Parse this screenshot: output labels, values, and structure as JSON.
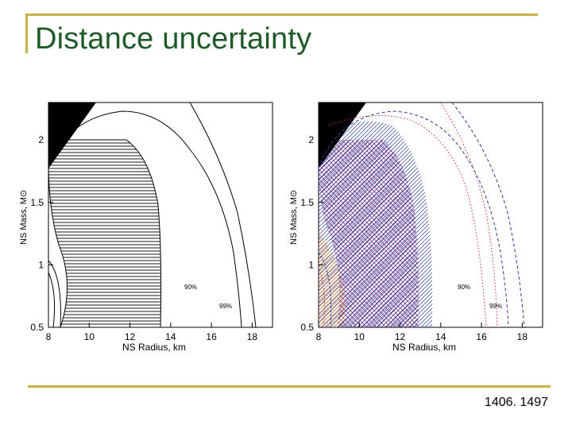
{
  "slide": {
    "title": "Distance uncertainty",
    "reference": "1406. 1497"
  },
  "colors": {
    "title": "#1f5b2a",
    "rule": "#c9b04a",
    "hatch_blue": "#2a3a9c",
    "hatch_magenta": "#a0287a",
    "dotted_red": "#c83232",
    "hatch_orange": "#d98a3a"
  },
  "chart_data": [
    {
      "type": "contour",
      "xlabel": "NS Radius, km",
      "ylabel": "NS Mass, M⊙",
      "xlim": [
        8,
        19
      ],
      "ylim": [
        0.5,
        2.3
      ],
      "x_ticks": [
        "8",
        "10",
        "12",
        "14",
        "16",
        "18"
      ],
      "y_ticks": [
        "0.5",
        "1",
        "1.5",
        "2"
      ],
      "contour_labels": [
        "90%",
        "99%"
      ]
    },
    {
      "type": "contour",
      "xlabel": "NS Radius, km",
      "ylabel": "NS Mass, M⊙",
      "xlim": [
        8,
        19
      ],
      "ylim": [
        0.5,
        2.3
      ],
      "x_ticks": [
        "8",
        "10",
        "12",
        "14",
        "16",
        "18"
      ],
      "y_ticks": [
        "0.5",
        "1",
        "1.5",
        "2"
      ],
      "contour_labels": [
        "90%",
        "99%"
      ]
    }
  ]
}
